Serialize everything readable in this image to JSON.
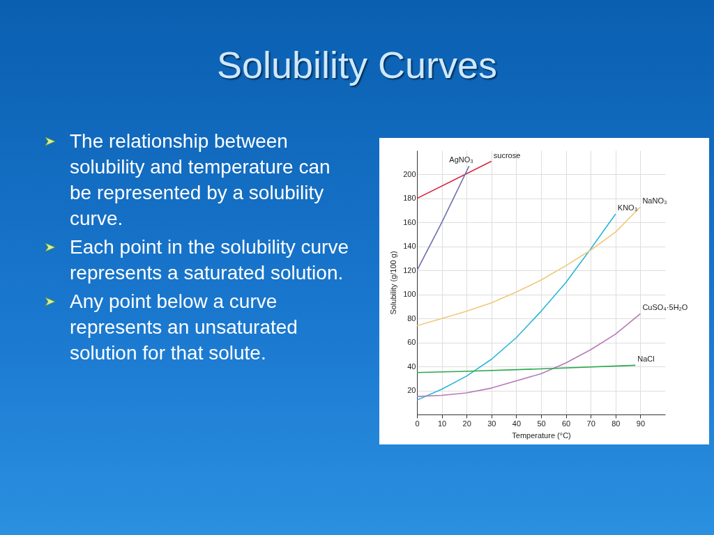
{
  "chart_data": {
    "type": "line",
    "title": "Solubility Curves",
    "annotations": [
      "The relationship between solubility and temperature can be represented by a solubility curve.",
      "Each point in the solubility curve represents a saturated solution.",
      "Any point below a curve represents an unsaturated solution for that solute."
    ],
    "xlabel": "Temperature (°C)",
    "ylabel": "Solubility (g/100 g)",
    "xlim": [
      0,
      100
    ],
    "xticks": [
      0,
      10,
      20,
      30,
      40,
      50,
      60,
      70,
      80,
      90
    ],
    "ylim": [
      0,
      220
    ],
    "yticks": [
      20,
      40,
      60,
      80,
      100,
      120,
      140,
      160,
      180,
      200
    ],
    "grid": true,
    "legend": false,
    "line_style": "solid",
    "marker": "none",
    "series": [
      {
        "name": "sucrose",
        "color": "#d9243a",
        "x": [
          0,
          30
        ],
        "values": [
          180,
          211
        ]
      },
      {
        "name": "AgNO₃",
        "color": "#6f6fb0",
        "x": [
          0,
          10,
          21
        ],
        "values": [
          120,
          160,
          207
        ]
      },
      {
        "name": "KNO₃",
        "color": "#2ab6d6",
        "x": [
          0,
          10,
          20,
          30,
          40,
          50,
          60,
          70,
          80
        ],
        "values": [
          12,
          21,
          32,
          46,
          64,
          86,
          110,
          138,
          167
        ]
      },
      {
        "name": "NaNO₃",
        "color": "#f0c878",
        "x": [
          0,
          10,
          20,
          30,
          40,
          50,
          60,
          70,
          80,
          90
        ],
        "values": [
          74,
          80,
          86,
          93,
          102,
          112,
          124,
          137,
          152,
          173
        ]
      },
      {
        "name": "CuSO₄·5H₂O",
        "color": "#b678b8",
        "x": [
          0,
          10,
          20,
          30,
          40,
          50,
          60,
          70,
          80,
          90
        ],
        "values": [
          15,
          16,
          18,
          22,
          28,
          34,
          43,
          54,
          67,
          84
        ]
      },
      {
        "name": "NaCl",
        "color": "#2aa84a",
        "x": [
          0,
          20,
          50,
          88
        ],
        "values": [
          35,
          36,
          38,
          41
        ]
      }
    ]
  }
}
